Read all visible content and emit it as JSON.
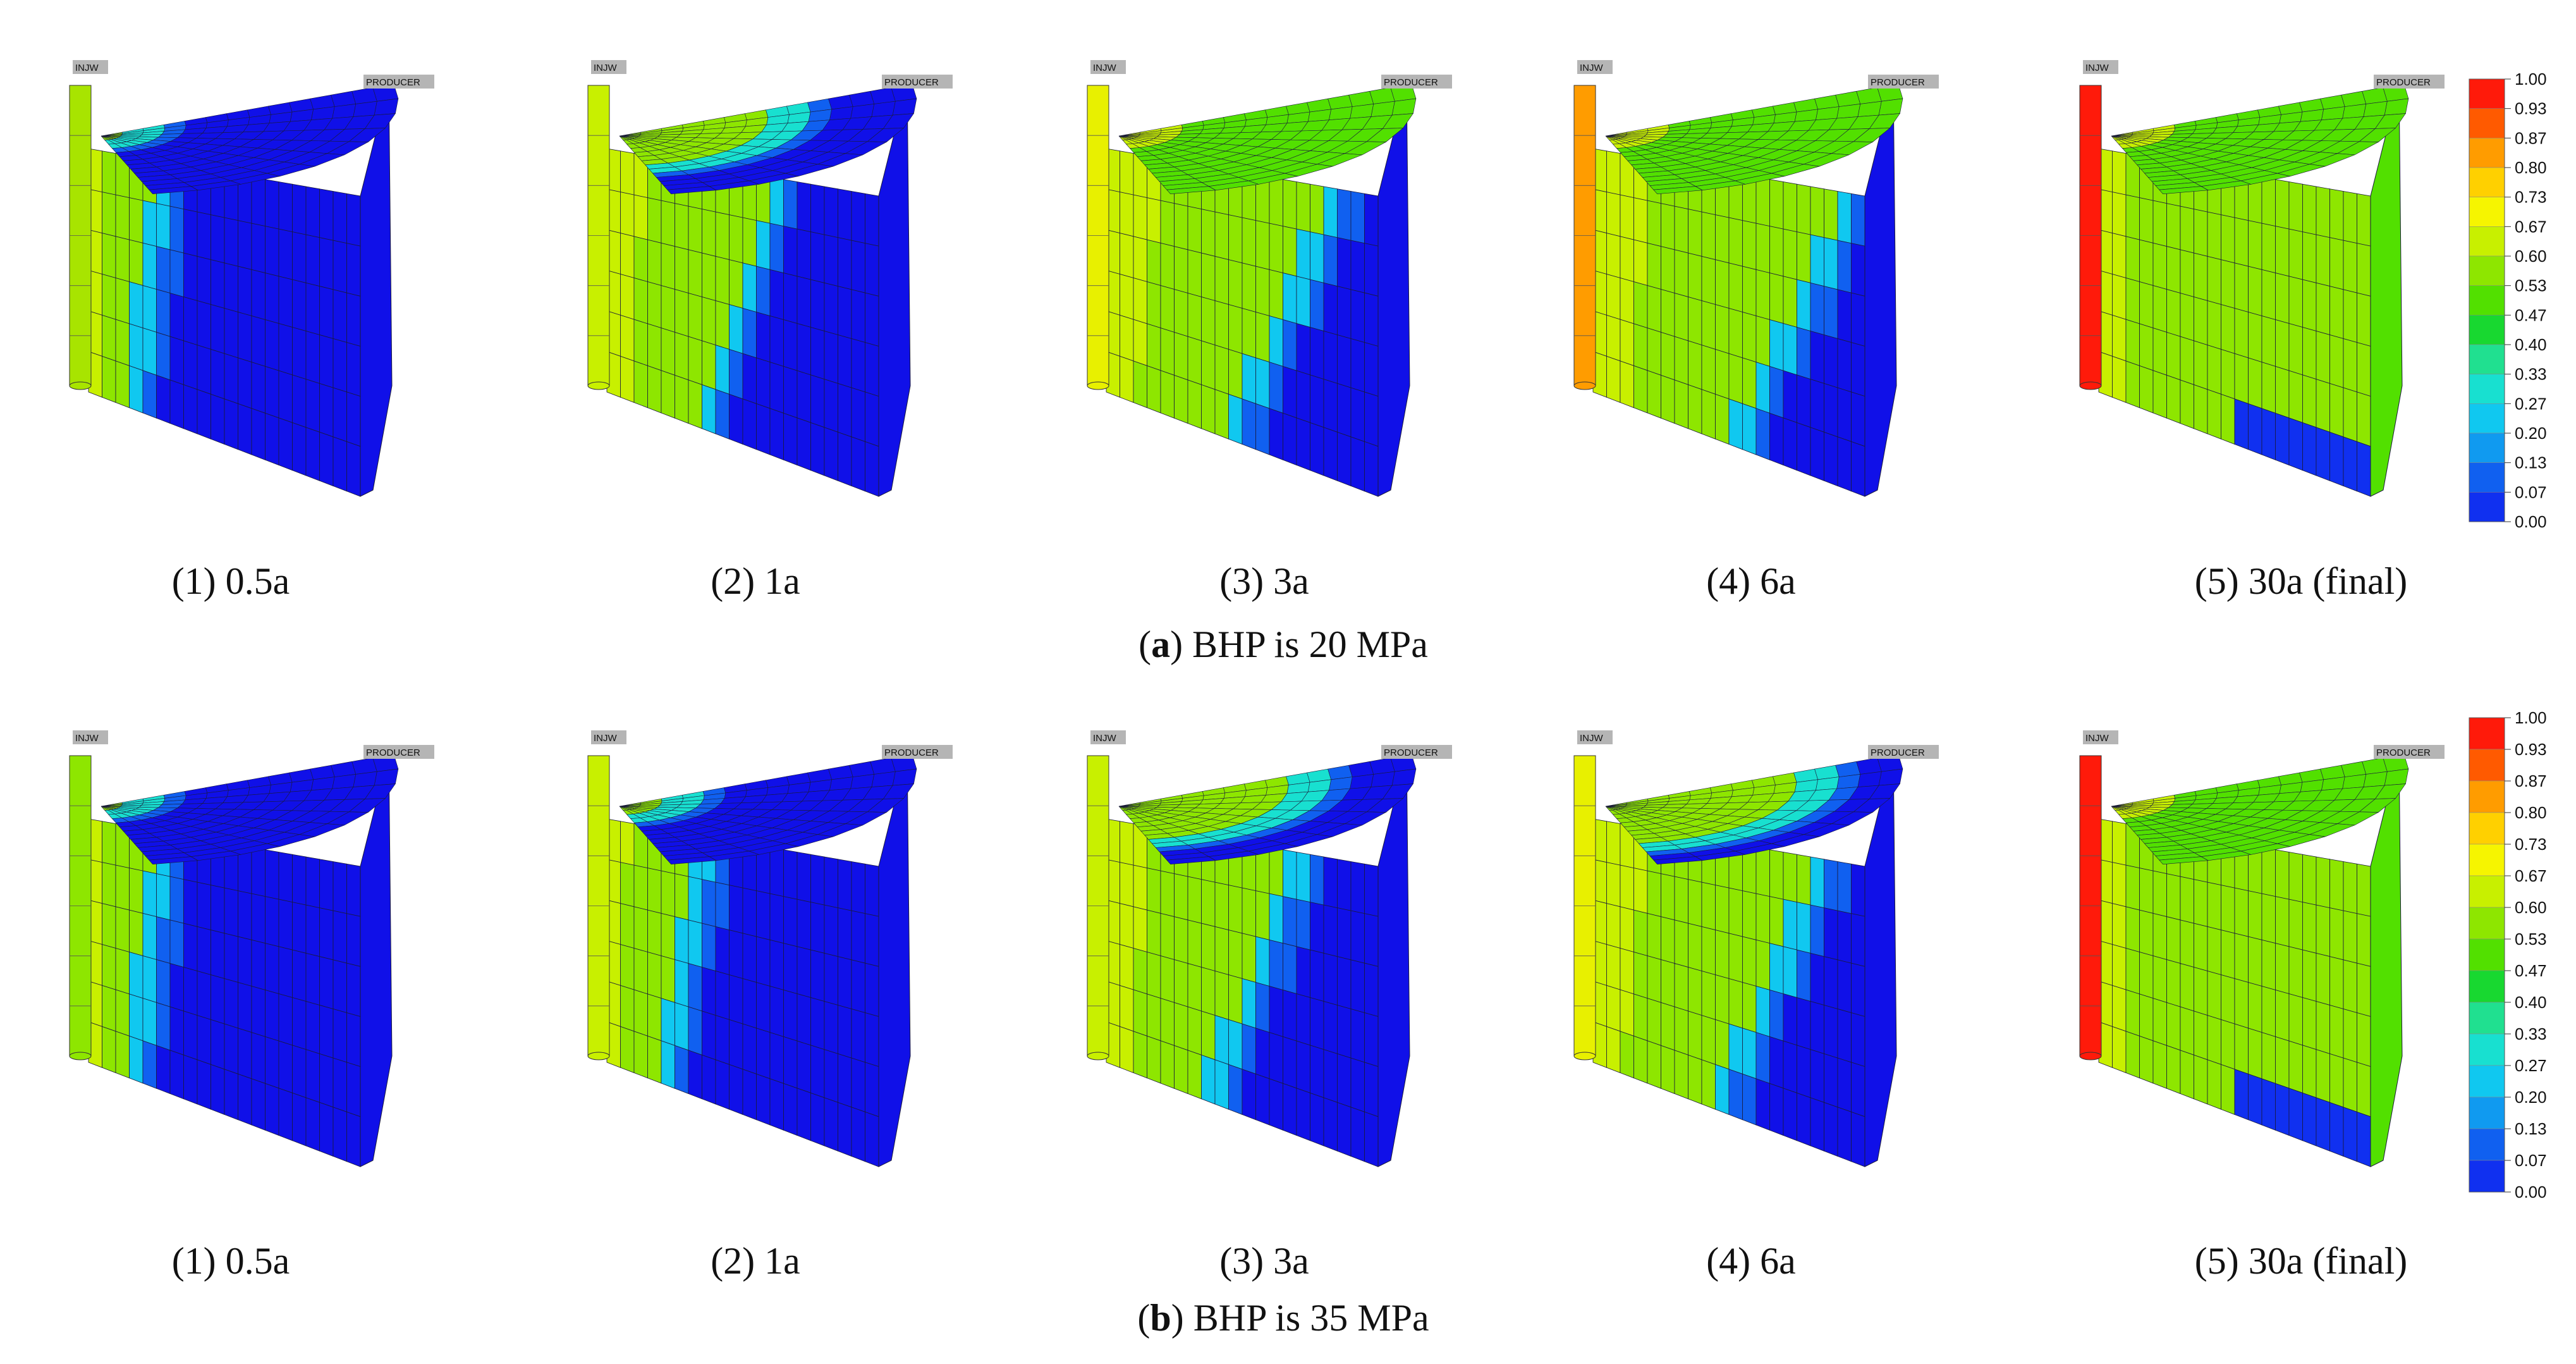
{
  "colorbar": {
    "ticks": [
      "1.00",
      "0.93",
      "0.87",
      "0.80",
      "0.73",
      "0.67",
      "0.60",
      "0.53",
      "0.47",
      "0.40",
      "0.33",
      "0.27",
      "0.20",
      "0.13",
      "0.07",
      "0.00"
    ],
    "colors": [
      "#ff1a0a",
      "#ff5a00",
      "#ff9c00",
      "#ffd000",
      "#f6f500",
      "#c8f000",
      "#8ee600",
      "#52e000",
      "#18d830",
      "#20e090",
      "#18e0d0",
      "#10c8f0",
      "#109af0",
      "#1060f0",
      "#1030f0",
      "#1010e8"
    ]
  },
  "well_labels": {
    "injector": "INJW",
    "producer": "PRODUCER"
  },
  "rows": [
    {
      "letter": "a",
      "caption_rest": ") BHP is 20 MPa",
      "panels": [
        {
          "label": "(1) 0.5a",
          "front": 0.22,
          "top": 0.15,
          "well": "#a8e400"
        },
        {
          "label": "(2) 1a",
          "front": 0.55,
          "top": 0.95,
          "well": "#c8f000"
        },
        {
          "label": "(3) 3a",
          "front": 0.75,
          "top": 1.2,
          "well": "#e8f000"
        },
        {
          "label": "(4) 6a",
          "front": 0.85,
          "top": 1.25,
          "well": "#ff9c00"
        },
        {
          "label": "(5) 30a (final)",
          "front": 1.0,
          "top": 1.3,
          "well": "#ff1a0a"
        }
      ]
    },
    {
      "letter": "b",
      "caption_rest": ") BHP is 35 MPa",
      "panels": [
        {
          "label": "(1) 0.5a",
          "front": 0.22,
          "top": 0.15,
          "well": "#8ee600"
        },
        {
          "label": "(2) 1a",
          "front": 0.3,
          "top": 0.25,
          "well": "#c8f000"
        },
        {
          "label": "(3) 3a",
          "front": 0.62,
          "top": 1.05,
          "well": "#c8f000"
        },
        {
          "label": "(4) 6a",
          "front": 0.75,
          "top": 1.15,
          "well": "#e8f000"
        },
        {
          "label": "(5) 30a (final)",
          "front": 1.0,
          "top": 1.3,
          "well": "#ff1a0a"
        }
      ]
    }
  ]
}
